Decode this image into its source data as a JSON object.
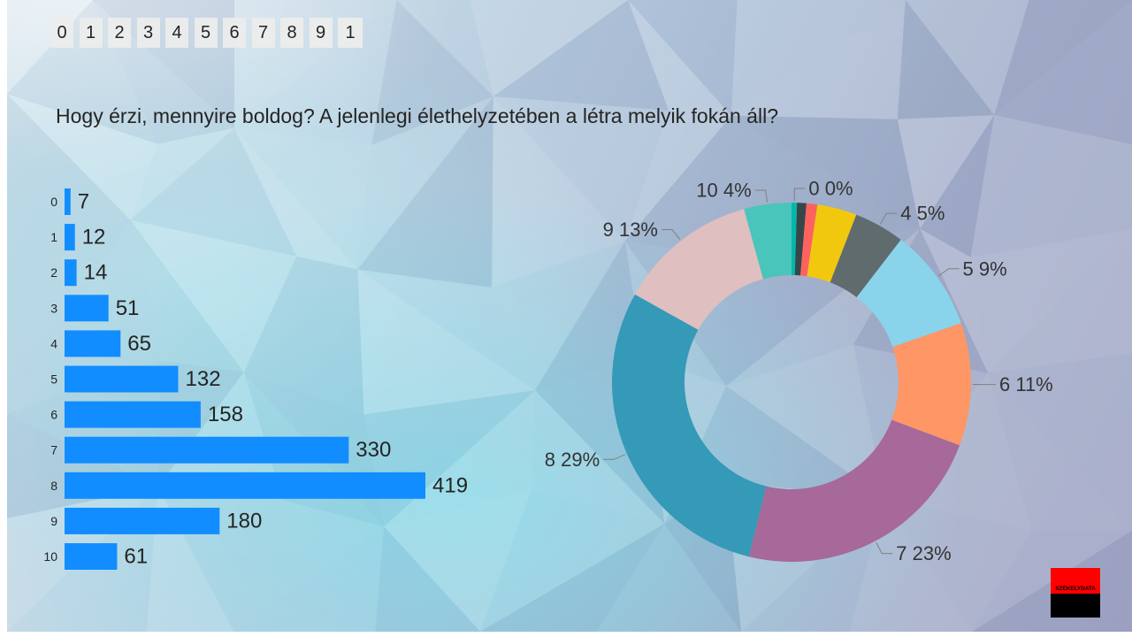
{
  "slicer": {
    "items": [
      "0",
      "1",
      "2",
      "3",
      "4",
      "5",
      "6",
      "7",
      "8",
      "9",
      "1"
    ]
  },
  "title": "Hogy érzi, mennyire boldog? A jelenlegi élethelyzetében a létra melyik fokán áll?",
  "chart_data": [
    {
      "type": "bar",
      "orientation": "horizontal",
      "categories": [
        "0",
        "1",
        "2",
        "3",
        "4",
        "5",
        "6",
        "7",
        "8",
        "9",
        "10"
      ],
      "values": [
        7,
        12,
        14,
        51,
        65,
        132,
        158,
        330,
        419,
        180,
        61
      ],
      "color": "#118DFF",
      "data_labels_shown": true,
      "grid": false
    },
    {
      "type": "pie",
      "donut": true,
      "categories": [
        "0",
        "1",
        "2",
        "3",
        "4",
        "5",
        "6",
        "7",
        "8",
        "9",
        "10"
      ],
      "values": [
        7,
        12,
        14,
        51,
        65,
        132,
        158,
        330,
        419,
        180,
        61
      ],
      "colors": [
        "#01B8AA",
        "#374649",
        "#FD625E",
        "#F2C80F",
        "#5F6B6D",
        "#8AD4EB",
        "#FE9666",
        "#A66999",
        "#3599B8",
        "#DFBFBF",
        "#4AC5BB"
      ],
      "data_labels": [
        "0 0%",
        null,
        null,
        null,
        "4 5%",
        "5 9%",
        "6 11%",
        "7 23%",
        "8 29%",
        "9 13%",
        "10 4%"
      ]
    }
  ],
  "logo": {
    "text": "SZÉKELYDATA",
    "top_color": "#FF0000",
    "bottom_color": "#000000"
  }
}
